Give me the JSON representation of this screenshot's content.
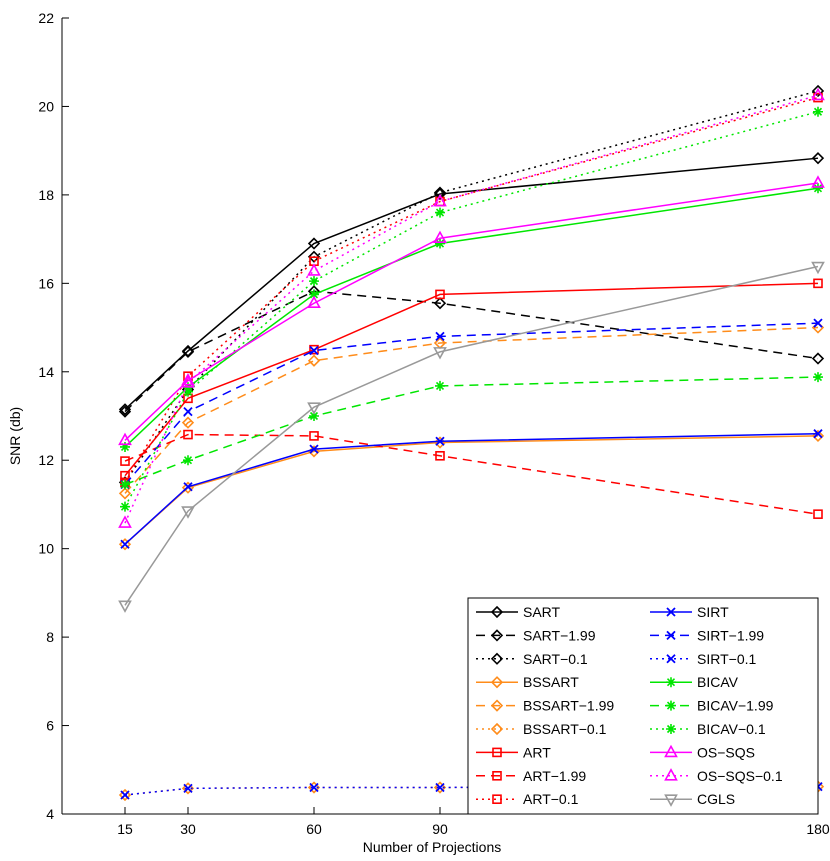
{
  "chart_data": {
    "type": "line",
    "title": "",
    "xlabel": "Number of Projections",
    "ylabel": "SNR (db)",
    "x": [
      15,
      30,
      60,
      90,
      180
    ],
    "xlim": [
      0,
      180
    ],
    "ylim": [
      4,
      22
    ],
    "xticks": [
      15,
      30,
      60,
      90,
      180
    ],
    "yticks": [
      4,
      6,
      8,
      10,
      12,
      14,
      16,
      18,
      20,
      22
    ],
    "grid": false,
    "legend_position": "bottom-right",
    "series": [
      {
        "name": "SART",
        "color": "#000000",
        "dash": "solid",
        "marker": "diamond",
        "values": [
          13.15,
          14.47,
          16.9,
          18.02,
          18.83
        ]
      },
      {
        "name": "SART−1.99",
        "color": "#000000",
        "dash": "dashed",
        "marker": "diamond",
        "values": [
          13.1,
          14.45,
          15.82,
          15.55,
          14.3
        ]
      },
      {
        "name": "SART−0.1",
        "color": "#000000",
        "dash": "dotted",
        "marker": "diamond",
        "values": [
          11.5,
          13.6,
          16.6,
          18.05,
          20.35
        ]
      },
      {
        "name": "BSSART",
        "color": "#ff8c1a",
        "dash": "solid",
        "marker": "diamond",
        "values": [
          10.1,
          11.38,
          12.2,
          12.4,
          12.55
        ]
      },
      {
        "name": "BSSART−1.99",
        "color": "#ff8c1a",
        "dash": "dashed",
        "marker": "diamond",
        "values": [
          11.25,
          12.85,
          14.25,
          14.65,
          15.0
        ]
      },
      {
        "name": "BSSART−0.1",
        "color": "#ff8c1a",
        "dash": "dotted",
        "marker": "diamond",
        "values": [
          4.43,
          4.58,
          4.6,
          4.6,
          4.62
        ]
      },
      {
        "name": "ART",
        "color": "#ff0000",
        "dash": "solid",
        "marker": "square",
        "values": [
          11.65,
          13.4,
          14.5,
          15.75,
          16.0
        ]
      },
      {
        "name": "ART−1.99",
        "color": "#ff0000",
        "dash": "dashed",
        "marker": "square",
        "values": [
          11.98,
          12.58,
          12.55,
          12.1,
          10.78
        ]
      },
      {
        "name": "ART−0.1",
        "color": "#ff0000",
        "dash": "dotted",
        "marker": "square",
        "values": [
          11.5,
          13.9,
          16.5,
          17.85,
          20.2
        ]
      },
      {
        "name": "SIRT",
        "color": "#0000ff",
        "dash": "solid",
        "marker": "x",
        "values": [
          10.1,
          11.4,
          12.25,
          12.43,
          12.6
        ]
      },
      {
        "name": "SIRT−1.99",
        "color": "#0000ff",
        "dash": "dashed",
        "marker": "x",
        "values": [
          11.45,
          13.1,
          14.48,
          14.8,
          15.1
        ]
      },
      {
        "name": "SIRT−0.1",
        "color": "#0000ff",
        "dash": "dotted",
        "marker": "x",
        "values": [
          4.43,
          4.58,
          4.6,
          4.6,
          4.62
        ]
      },
      {
        "name": "BICAV",
        "color": "#00e600",
        "dash": "solid",
        "marker": "star",
        "values": [
          12.3,
          13.65,
          15.75,
          16.9,
          18.15
        ]
      },
      {
        "name": "BICAV−1.99",
        "color": "#00e600",
        "dash": "dashed",
        "marker": "star",
        "values": [
          11.45,
          12.0,
          13.0,
          13.68,
          13.88
        ]
      },
      {
        "name": "BICAV−0.1",
        "color": "#00e600",
        "dash": "dotted",
        "marker": "star",
        "values": [
          10.95,
          13.55,
          16.05,
          17.6,
          19.88
        ]
      },
      {
        "name": "OS−SQS",
        "color": "#ff00ff",
        "dash": "solid",
        "marker": "triangle-up",
        "values": [
          12.45,
          13.8,
          15.55,
          17.02,
          18.27
        ]
      },
      {
        "name": "OS−SQS−0.1",
        "color": "#ff00ff",
        "dash": "dotted",
        "marker": "triangle-up",
        "values": [
          10.58,
          13.75,
          16.28,
          17.85,
          20.25
        ]
      },
      {
        "name": "CGLS",
        "color": "#999999",
        "dash": "solid",
        "marker": "triangle-down",
        "values": [
          8.72,
          10.85,
          13.2,
          14.45,
          16.38
        ]
      }
    ],
    "legend_columns": [
      [
        "SART",
        "SART−1.99",
        "SART−0.1",
        "BSSART",
        "BSSART−1.99",
        "BSSART−0.1",
        "ART",
        "ART−1.99",
        "ART−0.1"
      ],
      [
        "SIRT",
        "SIRT−1.99",
        "SIRT−0.1",
        "BICAV",
        "BICAV−1.99",
        "BICAV−0.1",
        "OS−SQS",
        "OS−SQS−0.1",
        "CGLS"
      ]
    ]
  }
}
